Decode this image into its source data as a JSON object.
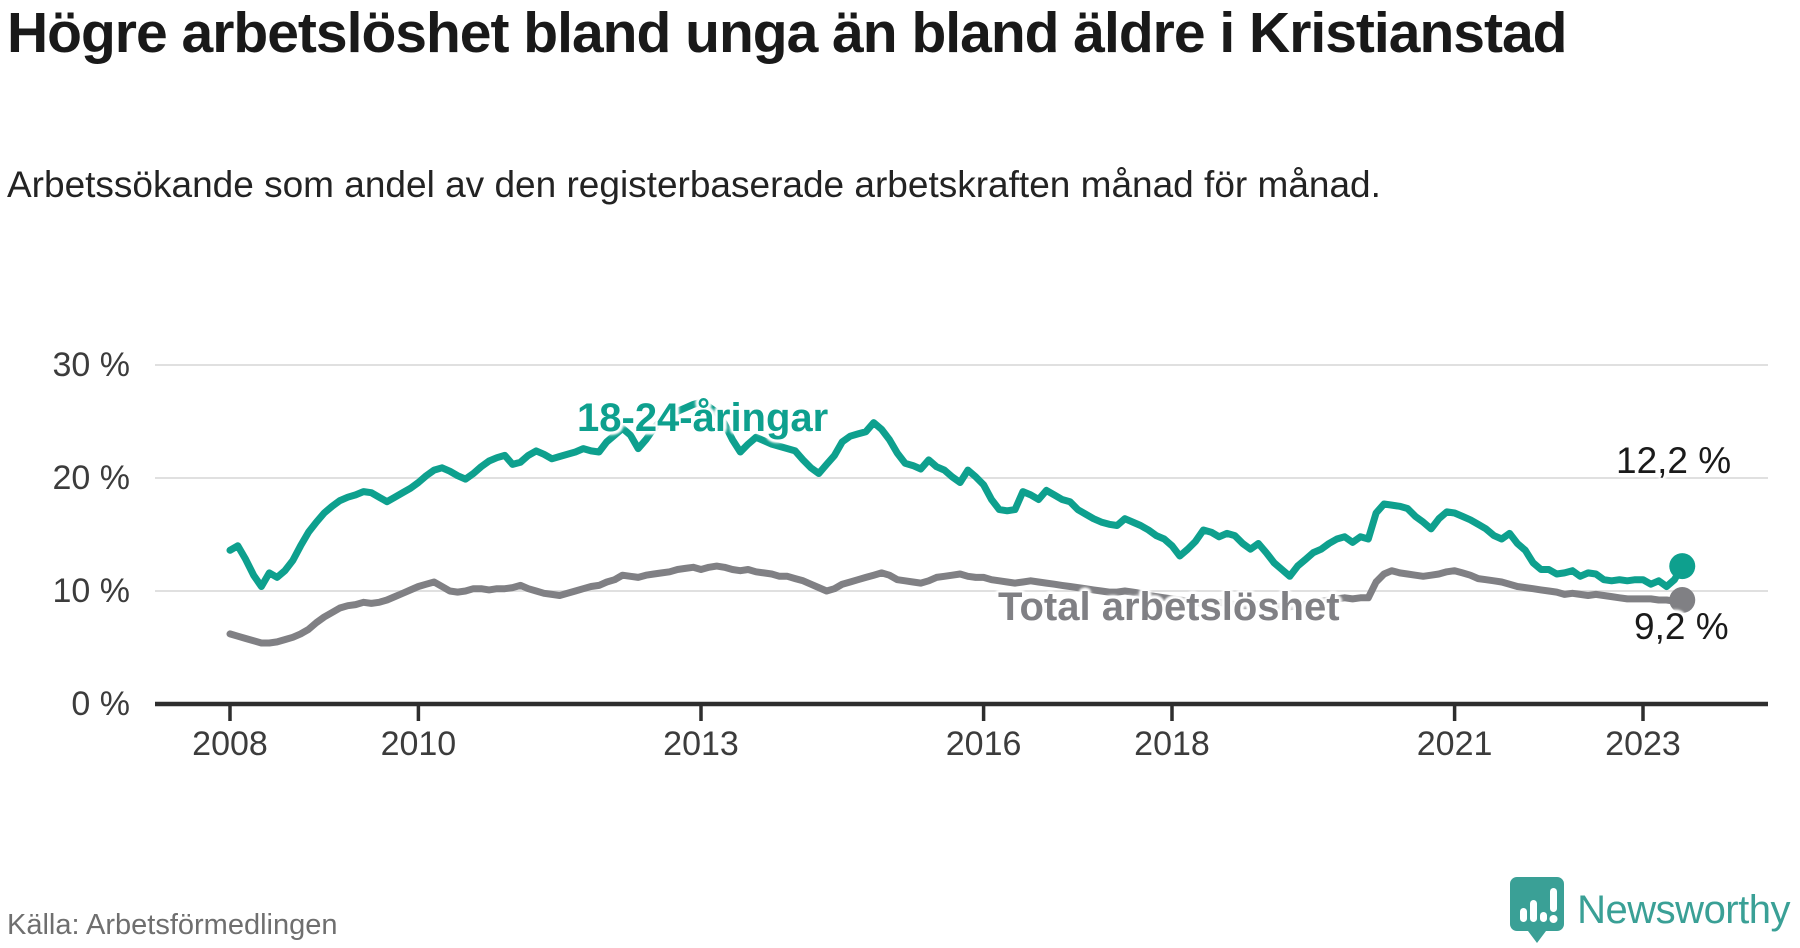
{
  "header": {
    "title": "Högre arbetslöshet bland unga än bland äldre i Kristianstad",
    "subtitle": "Arbetssökande som andel av den registerbaserade arbetskraften månad för månad."
  },
  "footer": {
    "source": "Källa: Arbetsförmedlingen",
    "brand": "Newsworthy",
    "logo_icon": "bar-chart-pin-icon",
    "brand_color": "#3aa096"
  },
  "chart_data": {
    "type": "line",
    "title": "",
    "xlabel": "",
    "ylabel": "",
    "unit": "%",
    "freq": "monthly",
    "x_start": "2008-01",
    "x_end": "2023-06",
    "ylim": [
      0,
      30
    ],
    "grid": true,
    "axis_color": "#2e2e2e",
    "gridline_color": "#e0e0e0",
    "yticks": [
      {
        "value": 30,
        "label": "30 %"
      },
      {
        "value": 20,
        "label": "20 %"
      },
      {
        "value": 10,
        "label": "10 %"
      },
      {
        "value": 0,
        "label": "0 %"
      }
    ],
    "xticks": [
      {
        "year": 2008,
        "label": "2008"
      },
      {
        "year": 2010,
        "label": "2010"
      },
      {
        "year": 2013,
        "label": "2013"
      },
      {
        "year": 2016,
        "label": "2016"
      },
      {
        "year": 2018,
        "label": "2018"
      },
      {
        "year": 2021,
        "label": "2021"
      },
      {
        "year": 2023,
        "label": "2023"
      }
    ],
    "series": [
      {
        "name": "18-24-åringar",
        "color": "#0ea08e",
        "end_value": 12.2,
        "end_label": "12,2 %",
        "values": [
          13.6,
          14.0,
          12.8,
          11.4,
          10.4,
          11.6,
          11.2,
          11.8,
          12.7,
          14.0,
          15.2,
          16.1,
          16.9,
          17.5,
          18.0,
          18.3,
          18.5,
          18.8,
          18.7,
          18.3,
          17.9,
          18.3,
          18.7,
          19.1,
          19.6,
          20.2,
          20.7,
          20.9,
          20.6,
          20.2,
          19.9,
          20.4,
          21.0,
          21.5,
          21.8,
          22.0,
          21.2,
          21.4,
          22.0,
          22.4,
          22.1,
          21.7,
          21.9,
          22.1,
          22.3,
          22.6,
          22.4,
          22.3,
          23.2,
          23.8,
          24.4,
          23.8,
          22.6,
          23.4,
          24.4,
          25.2,
          25.6,
          25.9,
          26.2,
          26.5,
          26.7,
          26.3,
          25.8,
          24.8,
          23.4,
          22.3,
          23.0,
          23.6,
          23.3,
          23.0,
          22.8,
          22.6,
          22.4,
          21.6,
          20.9,
          20.4,
          21.2,
          22.0,
          23.2,
          23.7,
          23.9,
          24.1,
          24.9,
          24.3,
          23.4,
          22.2,
          21.3,
          21.1,
          20.8,
          21.6,
          21.0,
          20.7,
          20.1,
          19.6,
          20.7,
          20.1,
          19.4,
          18.1,
          17.2,
          17.1,
          17.2,
          18.8,
          18.5,
          18.1,
          18.9,
          18.5,
          18.1,
          17.9,
          17.2,
          16.8,
          16.4,
          16.1,
          15.9,
          15.8,
          16.4,
          16.1,
          15.8,
          15.4,
          14.9,
          14.6,
          14.0,
          13.1,
          13.7,
          14.4,
          15.4,
          15.2,
          14.8,
          15.1,
          14.9,
          14.2,
          13.7,
          14.2,
          13.4,
          12.5,
          11.9,
          11.3,
          12.2,
          12.8,
          13.4,
          13.7,
          14.2,
          14.6,
          14.8,
          14.3,
          14.8,
          14.6,
          16.9,
          17.7,
          17.6,
          17.5,
          17.3,
          16.6,
          16.1,
          15.5,
          16.4,
          17.0,
          16.9,
          16.6,
          16.3,
          15.9,
          15.5,
          14.9,
          14.6,
          15.1,
          14.2,
          13.6,
          12.5,
          11.9,
          11.9,
          11.5,
          11.6,
          11.8,
          11.3,
          11.6,
          11.5,
          11.0,
          10.9,
          11.0,
          10.9,
          11.0,
          11.0,
          10.6,
          10.9,
          10.4,
          11.0,
          12.2
        ]
      },
      {
        "name": "Total arbetslöshet",
        "color": "#808084",
        "end_value": 9.2,
        "end_label": "9,2 %",
        "values": [
          6.2,
          6.0,
          5.8,
          5.6,
          5.4,
          5.4,
          5.5,
          5.7,
          5.9,
          6.2,
          6.6,
          7.2,
          7.7,
          8.1,
          8.5,
          8.7,
          8.8,
          9.0,
          8.9,
          9.0,
          9.2,
          9.5,
          9.8,
          10.1,
          10.4,
          10.6,
          10.8,
          10.4,
          10.0,
          9.9,
          10.0,
          10.2,
          10.2,
          10.1,
          10.2,
          10.2,
          10.3,
          10.5,
          10.2,
          10.0,
          9.8,
          9.7,
          9.6,
          9.8,
          10.0,
          10.2,
          10.4,
          10.5,
          10.8,
          11.0,
          11.4,
          11.3,
          11.2,
          11.4,
          11.5,
          11.6,
          11.7,
          11.9,
          12.0,
          12.1,
          11.9,
          12.1,
          12.2,
          12.1,
          11.9,
          11.8,
          11.9,
          11.7,
          11.6,
          11.5,
          11.3,
          11.3,
          11.1,
          10.9,
          10.6,
          10.3,
          10.0,
          10.2,
          10.6,
          10.8,
          11.0,
          11.2,
          11.4,
          11.6,
          11.4,
          11.0,
          10.9,
          10.8,
          10.7,
          10.9,
          11.2,
          11.3,
          11.4,
          11.5,
          11.3,
          11.2,
          11.2,
          11.0,
          10.9,
          10.8,
          10.7,
          10.8,
          10.9,
          10.8,
          10.7,
          10.6,
          10.5,
          10.4,
          10.3,
          10.2,
          10.1,
          10.0,
          9.9,
          9.9,
          10.0,
          9.9,
          9.8,
          9.6,
          9.5,
          9.4,
          9.3,
          9.2,
          9.1,
          9.0,
          8.9,
          8.9,
          9.0,
          8.9,
          8.8,
          8.7,
          8.7,
          8.8,
          8.8,
          8.7,
          8.6,
          8.6,
          8.7,
          8.8,
          9.0,
          9.1,
          9.2,
          9.3,
          9.4,
          9.3,
          9.4,
          9.4,
          10.8,
          11.5,
          11.8,
          11.6,
          11.5,
          11.4,
          11.3,
          11.4,
          11.5,
          11.7,
          11.8,
          11.6,
          11.4,
          11.1,
          11.0,
          10.9,
          10.8,
          10.6,
          10.4,
          10.3,
          10.2,
          10.1,
          10.0,
          9.9,
          9.7,
          9.8,
          9.7,
          9.6,
          9.7,
          9.6,
          9.5,
          9.4,
          9.3,
          9.3,
          9.3,
          9.3,
          9.2,
          9.2,
          9.1,
          9.2
        ]
      }
    ]
  }
}
